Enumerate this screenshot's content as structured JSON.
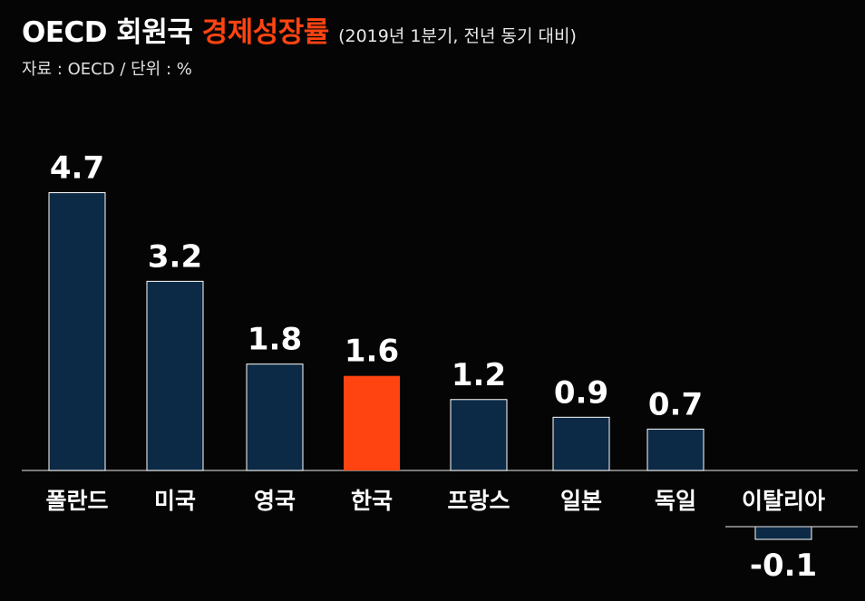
{
  "header": {
    "title_main": "OECD 회원국",
    "title_highlight": "경제성장률",
    "title_note": "(2019년 1분기, 전년 동기 대비)",
    "source": "자료 : OECD  / 단위 : %"
  },
  "colors": {
    "bar": "#0c2a45",
    "bar_highlight": "#ff4411",
    "bar_border": "#ffffff",
    "text": "#ffffff"
  },
  "chart_data": {
    "type": "bar",
    "title": "OECD 회원국 경제성장률 (2019년 1분기, 전년 동기 대비)",
    "xlabel": "",
    "ylabel": "",
    "unit": "%",
    "categories": [
      "폴란드",
      "미국",
      "영국",
      "한국",
      "프랑스",
      "일본",
      "독일",
      "이탈리아"
    ],
    "values": [
      4.7,
      3.2,
      1.8,
      1.6,
      1.2,
      0.9,
      0.7,
      -0.1
    ],
    "value_labels": [
      "4.7",
      "3.2",
      "1.8",
      "1.6",
      "1.2",
      "0.9",
      "0.7",
      "-0.1"
    ],
    "highlight_category": "한국",
    "grid": false,
    "legend": "none"
  }
}
